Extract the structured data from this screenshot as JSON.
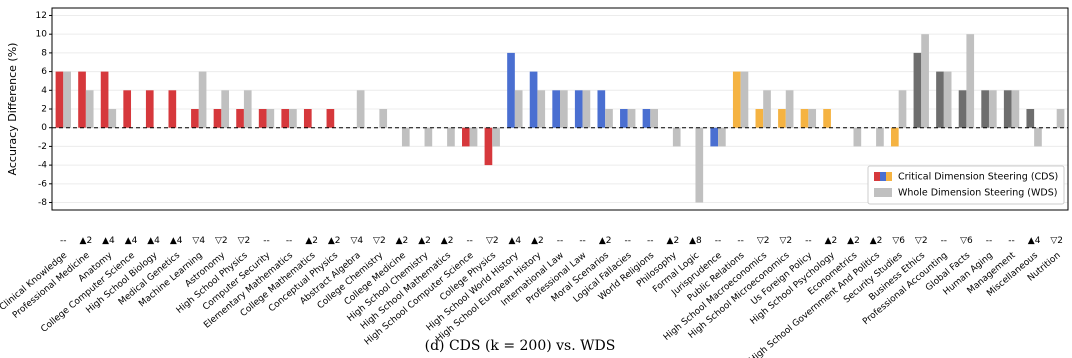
{
  "chart_data": {
    "type": "bar",
    "caption": "(d) CDS (k = 200) vs. WDS",
    "y_label": "Accuracy Difference (%)",
    "categories": [
      "Clinical Knowledge",
      "Professional Medicine",
      "Anatomy",
      "College Computer Science",
      "High School Biology",
      "Medical Genetics",
      "Machine Learning",
      "Astronomy",
      "High School Physics",
      "Computer Security",
      "Elementary Mathematics",
      "College Mathematics",
      "Conceptual Physics",
      "Abstract Algebra",
      "College Chemistry",
      "College Medicine",
      "High School Chemistry",
      "High School Mathematics",
      "High School Computer Science",
      "College Physics",
      "High School World History",
      "High School European History",
      "International Law",
      "Professional Law",
      "Moral Scenarios",
      "Logical Fallacies",
      "World Religions",
      "Philosophy",
      "Formal Logic",
      "Jurisprudence",
      "Public Relations",
      "High School Macroeconomics",
      "High School Microeconomics",
      "Us Foreign Policy",
      "High School Psychology",
      "Econometrics",
      "High School Government And Politics",
      "Security Studies",
      "Business Ethics",
      "Professional Accounting",
      "Global Facts",
      "Human Aging",
      "Management",
      "Miscellaneous",
      "Nutrition"
    ],
    "series": [
      {
        "name": "Critical Dimension Steering (CDS)",
        "values": [
          6,
          6,
          6,
          4,
          4,
          4,
          2,
          2,
          2,
          2,
          2,
          2,
          2,
          0,
          0,
          0,
          0,
          0,
          -2,
          -4,
          8,
          6,
          4,
          4,
          4,
          2,
          2,
          0,
          0,
          -2,
          6,
          2,
          2,
          2,
          2,
          0,
          0,
          -2,
          8,
          6,
          4,
          4,
          4,
          2,
          0
        ],
        "colors": [
          "#d6383c",
          "#d6383c",
          "#d6383c",
          "#d6383c",
          "#d6383c",
          "#d6383c",
          "#d6383c",
          "#d6383c",
          "#d6383c",
          "#d6383c",
          "#d6383c",
          "#d6383c",
          "#d6383c",
          "#d6383c",
          "#d6383c",
          "#d6383c",
          "#d6383c",
          "#d6383c",
          "#d6383c",
          "#d6383c",
          "#4a6fd1",
          "#4a6fd1",
          "#4a6fd1",
          "#4a6fd1",
          "#4a6fd1",
          "#4a6fd1",
          "#4a6fd1",
          "#4a6fd1",
          "#4a6fd1",
          "#4a6fd1",
          "#f5b342",
          "#f5b342",
          "#f5b342",
          "#f5b342",
          "#f5b342",
          "#f5b342",
          "#f5b342",
          "#f5b342",
          "#6e6e6e",
          "#6e6e6e",
          "#6e6e6e",
          "#6e6e6e",
          "#6e6e6e",
          "#6e6e6e",
          "#6e6e6e"
        ]
      },
      {
        "name": "Whole Dimension Steering (WDS)",
        "color": "#c0c0c0",
        "values": [
          6,
          4,
          2,
          0,
          0,
          0,
          6,
          4,
          4,
          2,
          2,
          0,
          0,
          4,
          2,
          -2,
          -2,
          -2,
          -2,
          -2,
          4,
          4,
          4,
          4,
          2,
          2,
          2,
          -2,
          -8,
          -2,
          6,
          4,
          4,
          2,
          0,
          -2,
          -2,
          4,
          10,
          6,
          10,
          4,
          4,
          -2,
          2
        ]
      }
    ],
    "annotations": [
      "--",
      "▲2",
      "▲4",
      "▲4",
      "▲4",
      "▲4",
      "▽4",
      "▽2",
      "▽2",
      "--",
      "--",
      "▲2",
      "▲2",
      "▽4",
      "▽2",
      "▲2",
      "▲2",
      "▲2",
      "--",
      "▽2",
      "▲4",
      "▲2",
      "--",
      "--",
      "▲2",
      "--",
      "--",
      "▲2",
      "▲8",
      "--",
      "--",
      "▽2",
      "▽2",
      "--",
      "▲2",
      "▲2",
      "▲2",
      "▽6",
      "▽2",
      "--",
      "▽6",
      "--",
      "--",
      "▲4",
      "▽2"
    ],
    "ylim": [
      -8.8,
      12.8
    ],
    "yticks": [
      -8,
      -6,
      -4,
      -2,
      0,
      2,
      4,
      6,
      8,
      10,
      12
    ],
    "grid": true,
    "legend": "lower right"
  }
}
